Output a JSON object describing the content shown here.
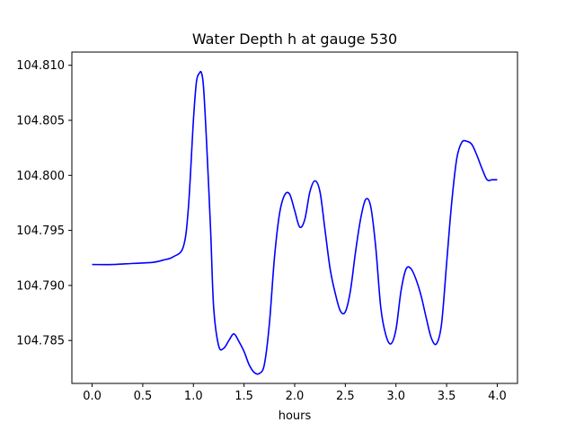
{
  "chart_data": {
    "type": "line",
    "title": "Water Depth h at gauge 530",
    "xlabel": "hours",
    "ylabel": "",
    "xlim": [
      -0.2,
      4.2
    ],
    "ylim": [
      104.7811,
      104.8112
    ],
    "xticks": [
      0.0,
      0.5,
      1.0,
      1.5,
      2.0,
      2.5,
      3.0,
      3.5,
      4.0
    ],
    "xtick_labels": [
      "0.0",
      "0.5",
      "1.0",
      "1.5",
      "2.0",
      "2.5",
      "3.0",
      "3.5",
      "4.0"
    ],
    "yticks": [
      104.785,
      104.79,
      104.795,
      104.8,
      104.805,
      104.81
    ],
    "ytick_labels": [
      "104.785",
      "104.790",
      "104.795",
      "104.800",
      "104.805",
      "104.810"
    ],
    "grid": false,
    "series": [
      {
        "color": "#0000ff",
        "x": [
          0.0,
          0.2,
          0.4,
          0.6,
          0.7,
          0.8,
          0.9,
          0.95,
          1.0,
          1.03,
          1.06,
          1.08,
          1.1,
          1.13,
          1.17,
          1.2,
          1.25,
          1.3,
          1.35,
          1.4,
          1.45,
          1.5,
          1.55,
          1.6,
          1.65,
          1.7,
          1.75,
          1.8,
          1.85,
          1.9,
          1.95,
          2.0,
          2.05,
          2.1,
          2.15,
          2.2,
          2.25,
          2.3,
          2.35,
          2.4,
          2.45,
          2.5,
          2.55,
          2.6,
          2.65,
          2.7,
          2.75,
          2.8,
          2.85,
          2.9,
          2.95,
          3.0,
          3.05,
          3.1,
          3.15,
          3.2,
          3.25,
          3.3,
          3.35,
          3.4,
          3.45,
          3.5,
          3.55,
          3.6,
          3.65,
          3.7,
          3.75,
          3.8,
          3.85,
          3.9,
          3.95,
          4.0
        ],
        "y": [
          104.7919,
          104.7919,
          104.792,
          104.7921,
          104.7923,
          104.7926,
          104.7935,
          104.797,
          104.805,
          104.8085,
          104.8093,
          104.8093,
          104.808,
          104.803,
          104.795,
          104.788,
          104.7845,
          104.7843,
          104.785,
          104.7856,
          104.7849,
          104.784,
          104.7828,
          104.7821,
          104.782,
          104.7828,
          104.7865,
          104.7925,
          104.7965,
          104.7982,
          104.7983,
          104.7968,
          104.7953,
          104.796,
          104.7985,
          104.7995,
          104.7985,
          104.795,
          104.7915,
          104.7893,
          104.7877,
          104.7876,
          104.7895,
          104.793,
          104.796,
          104.7978,
          104.7972,
          104.7935,
          104.788,
          104.7855,
          104.7847,
          104.786,
          104.7895,
          104.7915,
          104.7915,
          104.7905,
          104.789,
          104.787,
          104.7852,
          104.7847,
          104.7865,
          104.792,
          104.7975,
          104.8015,
          104.803,
          104.8031,
          104.8028,
          104.8018,
          104.8006,
          104.7996,
          104.7996,
          104.7996
        ]
      }
    ]
  }
}
